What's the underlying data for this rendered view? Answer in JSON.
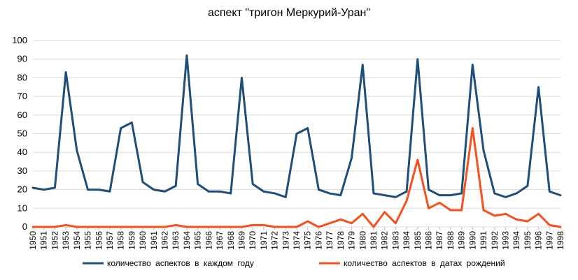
{
  "chart_data": {
    "type": "line",
    "title": "аспект \"тригон Меркурий-Уран\"",
    "xlabel": "",
    "ylabel": "",
    "ylim": [
      0,
      100
    ],
    "yticks": [
      0,
      10,
      20,
      30,
      40,
      50,
      60,
      70,
      80,
      90,
      100
    ],
    "grid": true,
    "legend_position": "bottom",
    "x": [
      "1950",
      "1951",
      "1952",
      "1953",
      "1954",
      "1955",
      "1956",
      "1957",
      "1958",
      "1959",
      "1960",
      "1961",
      "1962",
      "1963",
      "1964",
      "1965",
      "1966",
      "1967",
      "1968",
      "1969",
      "1970",
      "1971",
      "1972",
      "1973",
      "1974",
      "1975",
      "1976",
      "1977",
      "1978",
      "1979",
      "1980",
      "1981",
      "1982",
      "1983",
      "1984",
      "1985",
      "1986",
      "1987",
      "1988",
      "1989",
      "1990",
      "1991",
      "1992",
      "1993",
      "1994",
      "1995",
      "1996",
      "1997",
      "1998"
    ],
    "series": [
      {
        "name": "количество аспектов в каждом году",
        "color": "#1f4e79",
        "values": [
          21,
          20,
          21,
          83,
          41,
          20,
          20,
          19,
          53,
          56,
          24,
          20,
          19,
          22,
          92,
          23,
          19,
          19,
          18,
          80,
          23,
          19,
          18,
          16,
          50,
          53,
          20,
          18,
          17,
          37,
          87,
          18,
          17,
          16,
          19,
          90,
          20,
          17,
          17,
          18,
          87,
          41,
          18,
          16,
          18,
          22,
          75,
          19,
          17
        ]
      },
      {
        "name": "количество аспектов в датах рождений",
        "color": "#f4511e",
        "values": [
          0,
          0,
          0,
          1,
          0,
          0,
          0,
          0,
          0,
          0,
          0,
          0,
          0,
          1,
          0,
          0,
          0,
          0,
          0,
          0,
          1,
          1,
          0,
          0,
          0,
          3,
          0,
          2,
          4,
          2,
          7,
          0,
          8,
          2,
          14,
          36,
          10,
          13,
          9,
          9,
          53,
          9,
          6,
          7,
          4,
          3,
          7,
          1,
          0
        ]
      }
    ]
  }
}
